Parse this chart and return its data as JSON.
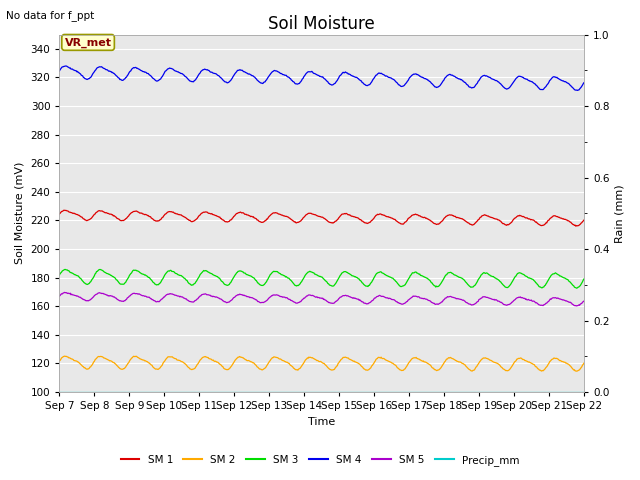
{
  "title": "Soil Moisture",
  "subtitle": "No data for f_ppt",
  "ylabel_left": "Soil Moisture (mV)",
  "ylabel_right": "Rain (mm)",
  "xlabel": "Time",
  "annotation": "VR_met",
  "ylim_left": [
    100,
    350
  ],
  "ylim_right": [
    0.0,
    1.0
  ],
  "yticks_left": [
    100,
    120,
    140,
    160,
    180,
    200,
    220,
    240,
    260,
    280,
    300,
    320,
    340
  ],
  "yticks_right": [
    0.0,
    0.2,
    0.4,
    0.6,
    0.8,
    1.0
  ],
  "xtick_labels": [
    "Sep 7",
    "Sep 8",
    "Sep 9",
    "Sep 10",
    "Sep 11",
    "Sep 12",
    "Sep 13",
    "Sep 14",
    "Sep 15",
    "Sep 16",
    "Sep 17",
    "Sep 18",
    "Sep 19",
    "Sep 20",
    "Sep 21",
    "Sep 22"
  ],
  "n_days": 15,
  "series": {
    "SM1": {
      "color": "#dd0000",
      "base": 224,
      "amp": 3.0,
      "trend": -0.28,
      "period": 1.0
    },
    "SM2": {
      "color": "#ffaa00",
      "base": 121,
      "amp": 4.0,
      "trend": -0.1,
      "period": 1.0
    },
    "SM3": {
      "color": "#00dd00",
      "base": 181,
      "amp": 4.5,
      "trend": -0.18,
      "period": 1.0
    },
    "SM4": {
      "color": "#0000ee",
      "base": 324,
      "amp": 4.0,
      "trend": -0.55,
      "period": 1.0
    },
    "SM5": {
      "color": "#aa00cc",
      "base": 167,
      "amp": 2.5,
      "trend": -0.25,
      "period": 1.0
    },
    "Precip": {
      "color": "#00cccc",
      "base": 100,
      "amp": 0,
      "trend": 0,
      "period": 1.0
    }
  },
  "legend_labels": [
    "SM 1",
    "SM 2",
    "SM 3",
    "SM 4",
    "SM 5",
    "Precip_mm"
  ],
  "legend_colors": [
    "#dd0000",
    "#ffaa00",
    "#00dd00",
    "#0000ee",
    "#aa00cc",
    "#00cccc"
  ],
  "fig_bg_color": "#ffffff",
  "plot_bg_color": "#e8e8e8",
  "grid_color": "#ffffff",
  "annotation_bg": "#ffffcc",
  "annotation_border": "#999900",
  "annotation_text_color": "#880000",
  "title_fontsize": 12,
  "label_fontsize": 8,
  "tick_fontsize": 7.5,
  "annotation_fontsize": 8
}
